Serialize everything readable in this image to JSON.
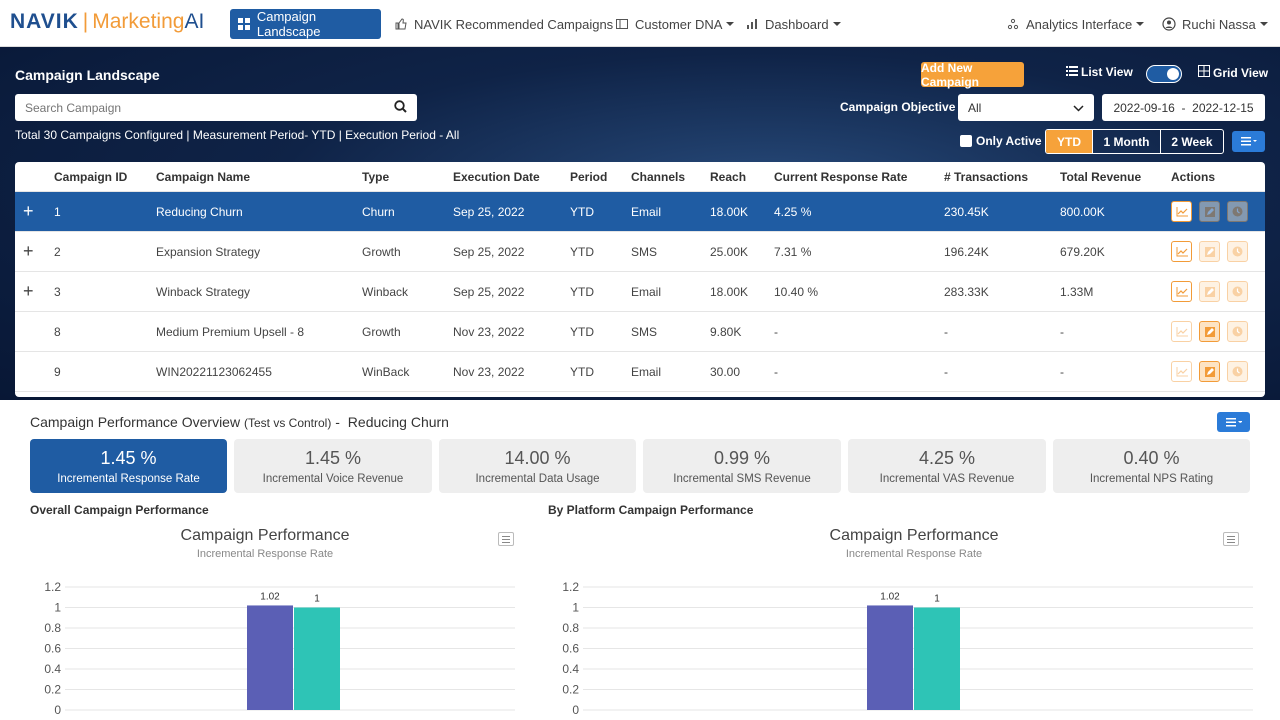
{
  "nav": {
    "logo_navik": "NAVIK",
    "logo_sep": "|",
    "logo_marketing": "Marketing",
    "logo_ai": "AI",
    "items": [
      {
        "label": "Campaign Landscape"
      },
      {
        "label": "NAVIK Recommended Campaigns"
      },
      {
        "label": "Customer DNA"
      },
      {
        "label": "Dashboard"
      }
    ],
    "analytics": "Analytics Interface",
    "user": "Ruchi Nassa"
  },
  "header": {
    "title": "Campaign Landscape",
    "add_button": "Add New Campaign",
    "list_view": "List View",
    "grid_view": "Grid View",
    "search_placeholder": "Search Campaign",
    "info": "Total 30 Campaigns Configured | Measurement Period- YTD | Execution Period - All",
    "objective_label": "Campaign Objective",
    "objective_value": "All",
    "date_range": "2022-09-16  -  2022-12-15",
    "only_active": "Only Active",
    "periods": [
      "YTD",
      "1 Month",
      "2 Week"
    ]
  },
  "table": {
    "columns": [
      "Campaign ID",
      "Campaign Name",
      "Type",
      "Execution Date",
      "Period",
      "Channels",
      "Reach",
      "Current Response Rate",
      "# Transactions",
      "Total Revenue",
      "Actions"
    ],
    "rows": [
      {
        "plus": "+",
        "id": "1",
        "name": "Reducing Churn",
        "type": "Churn",
        "date": "Sep 25, 2022",
        "period": "YTD",
        "channel": "Email",
        "reach": "18.00K",
        "rate": "4.25 %",
        "tx": "230.45K",
        "revenue": "800.00K"
      },
      {
        "plus": "+",
        "id": "2",
        "name": "Expansion Strategy",
        "type": "Growth",
        "date": "Sep 25, 2022",
        "period": "YTD",
        "channel": "SMS",
        "reach": "25.00K",
        "rate": "7.31 %",
        "tx": "196.24K",
        "revenue": "679.20K"
      },
      {
        "plus": "+",
        "id": "3",
        "name": "Winback Strategy",
        "type": "Winback",
        "date": "Sep 25, 2022",
        "period": "YTD",
        "channel": "Email",
        "reach": "18.00K",
        "rate": "10.40 %",
        "tx": "283.33K",
        "revenue": "1.33M"
      },
      {
        "plus": "",
        "id": "8",
        "name": "Medium Premium Upsell - 8",
        "type": "Growth",
        "date": "Nov 23, 2022",
        "period": "YTD",
        "channel": "SMS",
        "reach": "9.80K",
        "rate": "-",
        "tx": "-",
        "revenue": "-"
      },
      {
        "plus": "",
        "id": "9",
        "name": "WIN20221123062455",
        "type": "WinBack",
        "date": "Nov 23, 2022",
        "period": "YTD",
        "channel": "Email",
        "reach": "30.00",
        "rate": "-",
        "tx": "-",
        "revenue": "-"
      }
    ]
  },
  "performance": {
    "title": "Campaign Performance Overview",
    "title_small": "(Test vs Control)",
    "title_dash": "-",
    "campaign": "Reducing Churn",
    "kpis": [
      {
        "value": "1.45 %",
        "label": "Incremental Response Rate"
      },
      {
        "value": "1.45 %",
        "label": "Incremental Voice Revenue"
      },
      {
        "value": "14.00 %",
        "label": "Incremental Data Usage"
      },
      {
        "value": "0.99 %",
        "label": "Incremental SMS Revenue"
      },
      {
        "value": "4.25 %",
        "label": "Incremental VAS Revenue"
      },
      {
        "value": "0.40 %",
        "label": "Incremental NPS Rating"
      }
    ],
    "overall_label": "Overall Campaign Performance",
    "platform_label": "By Platform Campaign Performance"
  },
  "chart_data": [
    {
      "type": "bar",
      "title": "Campaign Performance",
      "subtitle": "Incremental Response Rate",
      "yticks": [
        "1.2",
        "1",
        "0.8",
        "0.6",
        "0.4",
        "0.2",
        "0"
      ],
      "ylim": [
        0,
        1.2
      ],
      "series": [
        {
          "values": [
            1.02
          ],
          "label": "1.02",
          "color": "#5b5fb5"
        },
        {
          "values": [
            1
          ],
          "label": "1",
          "color": "#2ec4b6"
        }
      ]
    },
    {
      "type": "bar",
      "title": "Campaign Performance",
      "subtitle": "Incremental Response Rate",
      "yticks": [
        "1.2",
        "1",
        "0.8",
        "0.6",
        "0.4",
        "0.2",
        "0"
      ],
      "ylim": [
        0,
        1.2
      ],
      "series": [
        {
          "values": [
            1.02
          ],
          "label": "1.02",
          "color": "#5b5fb5"
        },
        {
          "values": [
            1
          ],
          "label": "1",
          "color": "#2ec4b6"
        }
      ]
    }
  ],
  "colors": {
    "primary": "#1f5ca3",
    "accent": "#f6a23a",
    "bar1": "#5b5fb5",
    "bar2": "#2ec4b6"
  }
}
